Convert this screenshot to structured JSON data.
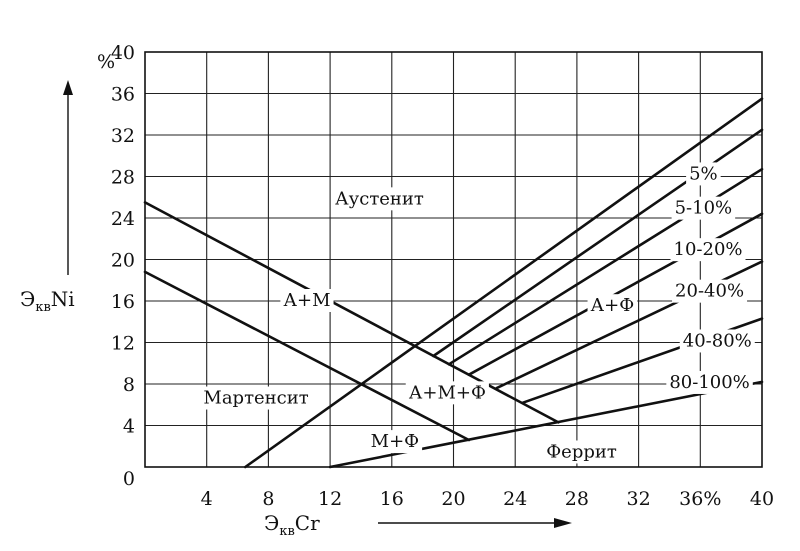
{
  "chart_data": {
    "type": "diagram",
    "x_axis": {
      "label": "Э",
      "label_sub": "кв",
      "label_elem": "Cr",
      "range": [
        0,
        40
      ],
      "ticks": [
        {
          "value": 4,
          "label": "4"
        },
        {
          "value": 8,
          "label": "8"
        },
        {
          "value": 12,
          "label": "12"
        },
        {
          "value": 16,
          "label": "16"
        },
        {
          "value": 20,
          "label": "20"
        },
        {
          "value": 24,
          "label": "24"
        },
        {
          "value": 28,
          "label": "28"
        },
        {
          "value": 32,
          "label": "32"
        },
        {
          "value": 36,
          "label": "36%"
        },
        {
          "value": 40,
          "label": "40"
        }
      ]
    },
    "y_axis": {
      "label": "Э",
      "label_sub": "кв",
      "label_elem": "Ni",
      "unit": "%",
      "range": [
        0,
        40
      ],
      "ticks": [
        {
          "value": 0,
          "label": "0"
        },
        {
          "value": 4,
          "label": "4"
        },
        {
          "value": 8,
          "label": "8"
        },
        {
          "value": 12,
          "label": "12"
        },
        {
          "value": 16,
          "label": "16"
        },
        {
          "value": 20,
          "label": "20"
        },
        {
          "value": 24,
          "label": "24"
        },
        {
          "value": 28,
          "label": "28"
        },
        {
          "value": 32,
          "label": "32"
        },
        {
          "value": 36,
          "label": "36"
        },
        {
          "value": 40,
          "label": "40"
        }
      ]
    },
    "grid": true,
    "boundaries": [
      {
        "id": "am-upper",
        "points": [
          [
            0,
            25.5
          ],
          [
            26.8,
            4.3
          ]
        ]
      },
      {
        "id": "am-lower",
        "points": [
          [
            0,
            18.8
          ],
          [
            21,
            2.6
          ]
        ]
      },
      {
        "id": "martensite-limit",
        "points": [
          [
            6.5,
            0
          ],
          [
            40,
            35.5
          ]
        ]
      },
      {
        "id": "ferrite-limit",
        "points": [
          [
            12,
            0
          ],
          [
            40,
            8.2
          ]
        ]
      },
      {
        "id": "f-5",
        "points": [
          [
            18.7,
            10.7
          ],
          [
            40,
            32.5
          ]
        ]
      },
      {
        "id": "f-10",
        "points": [
          [
            19.7,
            9.9
          ],
          [
            40,
            28.7
          ]
        ]
      },
      {
        "id": "f-20",
        "points": [
          [
            21,
            8.9
          ],
          [
            40,
            24.4
          ]
        ]
      },
      {
        "id": "f-40",
        "points": [
          [
            22.8,
            7.6
          ],
          [
            40,
            19.8
          ]
        ]
      },
      {
        "id": "f-80",
        "points": [
          [
            24.5,
            6.2
          ],
          [
            40,
            14.3
          ]
        ]
      }
    ],
    "regions": [
      {
        "id": "austenite",
        "label": "Аустенит",
        "x": 15.2,
        "y": 25.8
      },
      {
        "id": "a-m",
        "label": "А+М",
        "x": 10.5,
        "y": 16
      },
      {
        "id": "martensite",
        "label": "Мартенсит",
        "x": 7.2,
        "y": 6.6
      },
      {
        "id": "a-m-f",
        "label": "А+М+Ф",
        "x": 19.6,
        "y": 7.1
      },
      {
        "id": "m-f",
        "label": "М+Ф",
        "x": 16.2,
        "y": 2.4
      },
      {
        "id": "a-f",
        "label": "А+Ф",
        "x": 30.3,
        "y": 15.5
      },
      {
        "id": "ferrite",
        "label": "Феррит",
        "x": 28.3,
        "y": 1.4
      }
    ],
    "ferrite_labels": [
      {
        "label": "5%",
        "x": 36.2,
        "y": 28.2
      },
      {
        "label": "5-10%",
        "x": 36.2,
        "y": 24.9
      },
      {
        "label": "10-20%",
        "x": 36.5,
        "y": 20.9
      },
      {
        "label": "20-40%",
        "x": 36.6,
        "y": 16.9
      },
      {
        "label": "40-80%",
        "x": 37.1,
        "y": 12.1
      },
      {
        "label": "80-100%",
        "x": 36.6,
        "y": 8.1
      }
    ]
  }
}
